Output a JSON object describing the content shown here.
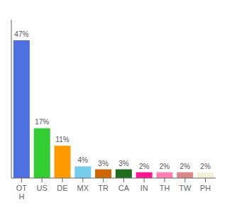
{
  "chart_data": {
    "type": "bar",
    "categories": [
      "OT\nH",
      "US",
      "DE",
      "MX",
      "TR",
      "CA",
      "IN",
      "TH",
      "TW",
      "PH"
    ],
    "values": [
      47,
      17,
      11,
      4,
      3,
      3,
      2,
      2,
      2,
      2
    ],
    "value_labels": [
      "47%",
      "17%",
      "11%",
      "4%",
      "3%",
      "3%",
      "2%",
      "2%",
      "2%",
      "2%"
    ],
    "data_labels": true,
    "colors": [
      "#4d6fe0",
      "#33cc33",
      "#ff9900",
      "#77ccee",
      "#cc6600",
      "#1e6e1e",
      "#ff1493",
      "#ff80b3",
      "#dd8888",
      "#f5f0d8"
    ],
    "ylim": [
      0,
      54
    ],
    "grid": false,
    "tick_labels": "x"
  }
}
